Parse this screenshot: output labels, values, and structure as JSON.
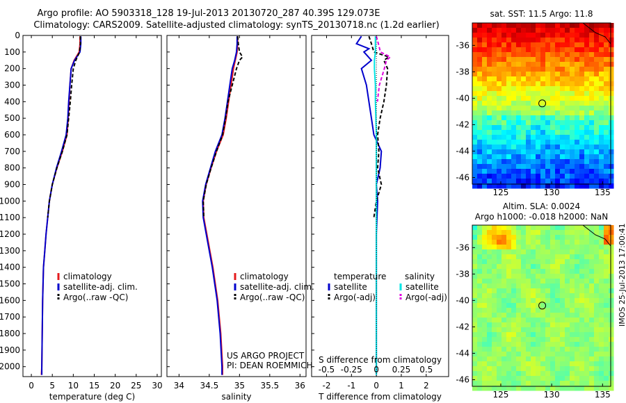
{
  "header": {
    "line1": "Argo profile: AO 5903318_128 19-Jul-2013 20130720_287 40.39S 129.073E",
    "line2": "Climatology: CARS2009. Satellite-adjusted climatology: synTS_20130718.nc (1.2d earlier)"
  },
  "footer": {
    "project": "US ARGO PROJECT",
    "pi": "PI: DEAN ROEMMICH"
  },
  "side_label": "IMOS 25-Jul-2013 17:00:41",
  "colors": {
    "climatology": "#e41a1c",
    "satellite": "#0000cc",
    "argo": "#000000",
    "satellite_s": "#00e5e5",
    "argo_s": "#e000e0"
  },
  "chart_data": [
    {
      "id": "temperature",
      "type": "line",
      "xlabel": "temperature (deg C)",
      "ylabel": "",
      "xlim": [
        -2,
        31
      ],
      "ylim": [
        2060,
        0
      ],
      "xticks": [
        0,
        5,
        10,
        15,
        20,
        25,
        30
      ],
      "yticks": [
        0,
        100,
        200,
        300,
        400,
        500,
        600,
        700,
        800,
        900,
        1000,
        1100,
        1200,
        1300,
        1400,
        1500,
        1600,
        1700,
        1800,
        1900,
        2000
      ],
      "legend": [
        "climatology",
        "satellite-adj. clim.",
        "Argo(..raw -QC)"
      ],
      "series": [
        {
          "name": "climatology",
          "color": "#e41a1c",
          "depth": [
            5,
            50,
            100,
            150,
            200,
            300,
            400,
            500,
            600,
            700,
            800,
            900,
            1000,
            1100,
            1200,
            1300,
            1400,
            1600,
            1800,
            2000,
            2050
          ],
          "values": [
            11.6,
            11.6,
            11.4,
            10.2,
            9.5,
            9.2,
            9.0,
            8.8,
            8.5,
            7.4,
            6.1,
            5.0,
            4.3,
            3.9,
            3.5,
            3.2,
            2.9,
            2.7,
            2.6,
            2.5,
            2.4
          ]
        },
        {
          "name": "satellite-adj. clim.",
          "color": "#0000cc",
          "depth": [
            5,
            50,
            100,
            150,
            200,
            300,
            400,
            500,
            600,
            700,
            800,
            900,
            1000,
            1100,
            1200,
            1300,
            1400,
            1600,
            1800,
            2000,
            2050
          ],
          "values": [
            11.8,
            11.8,
            11.6,
            10.3,
            9.5,
            9.2,
            8.9,
            8.7,
            8.3,
            7.2,
            6.0,
            5.0,
            4.3,
            3.9,
            3.5,
            3.2,
            2.9,
            2.7,
            2.6,
            2.5,
            2.5
          ]
        },
        {
          "name": "Argo(..raw -QC)",
          "color": "#000000",
          "dashed": true,
          "depth": [
            5,
            50,
            100,
            150,
            200,
            300,
            400,
            500,
            600,
            700,
            800,
            900,
            1000,
            1100
          ],
          "values": [
            11.7,
            11.7,
            11.5,
            10.6,
            10.0,
            9.6,
            9.3,
            8.9,
            8.5,
            7.4,
            6.1,
            5.0,
            4.3,
            3.9
          ]
        }
      ]
    },
    {
      "id": "salinity",
      "type": "line",
      "xlabel": "salinity",
      "xlim": [
        33.8,
        36.1
      ],
      "ylim": [
        2060,
        0
      ],
      "xticks": [
        34,
        34.5,
        35,
        35.5,
        36
      ],
      "legend": [
        "climatology",
        "satellite-adj. clim.",
        "Argo(..raw -QC)"
      ],
      "series": [
        {
          "name": "climatology",
          "color": "#e41a1c",
          "depth": [
            5,
            50,
            100,
            150,
            200,
            300,
            400,
            500,
            600,
            700,
            800,
            900,
            1000,
            1100,
            1200,
            1400,
            1600,
            1800,
            2000,
            2050
          ],
          "values": [
            34.97,
            34.97,
            34.96,
            34.93,
            34.9,
            34.86,
            34.82,
            34.78,
            34.73,
            34.62,
            34.53,
            34.45,
            34.4,
            34.41,
            34.46,
            34.56,
            34.64,
            34.69,
            34.72,
            34.72
          ]
        },
        {
          "name": "satellite-adj. clim.",
          "color": "#0000cc",
          "depth": [
            5,
            50,
            100,
            150,
            200,
            300,
            400,
            500,
            600,
            700,
            800,
            900,
            1000,
            1100,
            1200,
            1400,
            1600,
            1800,
            2000,
            2050
          ],
          "values": [
            34.96,
            34.96,
            34.95,
            34.92,
            34.88,
            34.84,
            34.8,
            34.76,
            34.71,
            34.6,
            34.52,
            34.44,
            34.39,
            34.4,
            34.45,
            34.55,
            34.63,
            34.68,
            34.71,
            34.71
          ]
        },
        {
          "name": "Argo(..raw -QC)",
          "color": "#000000",
          "dashed": true,
          "depth": [
            5,
            50,
            100,
            130,
            150,
            200,
            300,
            400,
            500,
            600,
            700,
            800,
            900,
            1000,
            1100
          ],
          "values": [
            34.97,
            34.98,
            35.0,
            35.05,
            35.0,
            34.95,
            34.88,
            34.81,
            34.77,
            34.72,
            34.62,
            34.53,
            34.45,
            34.4,
            34.41
          ]
        }
      ]
    },
    {
      "id": "difference",
      "type": "line",
      "xlabel": "T difference from climatology",
      "xlabel_top": "S difference from climatology",
      "xlim": [
        -2.6,
        2.9
      ],
      "ylim": [
        2060,
        0
      ],
      "xticks": [
        -2,
        -1,
        0,
        1,
        2
      ],
      "xticks_top": [
        -0.5,
        -0.25,
        0,
        0.25,
        0.5
      ],
      "legend_headings": [
        "temperature",
        "salinity"
      ],
      "legend_t": [
        "satellite",
        "Argo(-adj)"
      ],
      "legend_s": [
        "satellite",
        "Argo(-adj)"
      ],
      "series": [
        {
          "name": "T satellite",
          "color": "#0000cc",
          "depth": [
            5,
            50,
            80,
            100,
            150,
            200,
            300,
            400,
            500,
            600,
            700,
            800,
            900,
            1000,
            1200,
            1500,
            2000,
            2050
          ],
          "values": [
            -0.6,
            -0.8,
            -0.3,
            -0.5,
            -0.2,
            -0.6,
            -0.4,
            -0.3,
            -0.2,
            -0.1,
            0.2,
            0.15,
            0.0,
            0.05,
            0.0,
            0.0,
            0.0,
            0.0
          ]
        },
        {
          "name": "T Argo(-adj)",
          "color": "#000000",
          "dashed": true,
          "depth": [
            5,
            50,
            100,
            130,
            150,
            200,
            300,
            400,
            500,
            600,
            700,
            800,
            900,
            1000,
            1100
          ],
          "values": [
            -0.3,
            -0.2,
            -0.1,
            0.5,
            0.3,
            0.45,
            0.4,
            0.3,
            0.15,
            0.05,
            0.1,
            0.05,
            0.2,
            0.0,
            -0.1
          ]
        },
        {
          "name": "S satellite",
          "color": "#00e5e5",
          "depth": [
            5,
            50,
            100,
            150,
            200,
            300,
            400,
            600,
            800,
            1000,
            1500,
            2000,
            2050
          ],
          "values": [
            -0.01,
            -0.01,
            -0.01,
            -0.02,
            -0.02,
            -0.01,
            -0.01,
            0.0,
            0.0,
            0.0,
            0.0,
            0.0,
            0.0
          ]
        },
        {
          "name": "S Argo(-adj)",
          "color": "#e000e0",
          "dashed": true,
          "depth": [
            5,
            50,
            100,
            130,
            150,
            200,
            300,
            400
          ],
          "values": [
            0.0,
            0.02,
            0.04,
            0.14,
            0.1,
            0.08,
            0.03,
            0.01
          ]
        }
      ]
    },
    {
      "id": "sst_map",
      "type": "heatmap",
      "title": "sat. SST: 11.5 Argo: 11.8",
      "xticks": [
        125,
        130,
        135
      ],
      "yticks": [
        -36,
        -38,
        -40,
        -42,
        -44,
        -46
      ],
      "xlim": [
        122.2,
        135.8
      ],
      "ylim": [
        -46.5,
        -34.3
      ],
      "marker": [
        129.073,
        -40.39
      ]
    },
    {
      "id": "sla_map",
      "type": "heatmap",
      "title": "Altim. SLA: 0.0024",
      "subtitle": "Argo h1000: -0.018 h2000: NaN",
      "xticks": [
        125,
        130,
        135
      ],
      "yticks": [
        -36,
        -38,
        -40,
        -42,
        -44,
        -46
      ],
      "xlim": [
        122.2,
        135.8
      ],
      "ylim": [
        -46.5,
        -34.3
      ],
      "marker": [
        129.073,
        -40.39
      ]
    }
  ]
}
